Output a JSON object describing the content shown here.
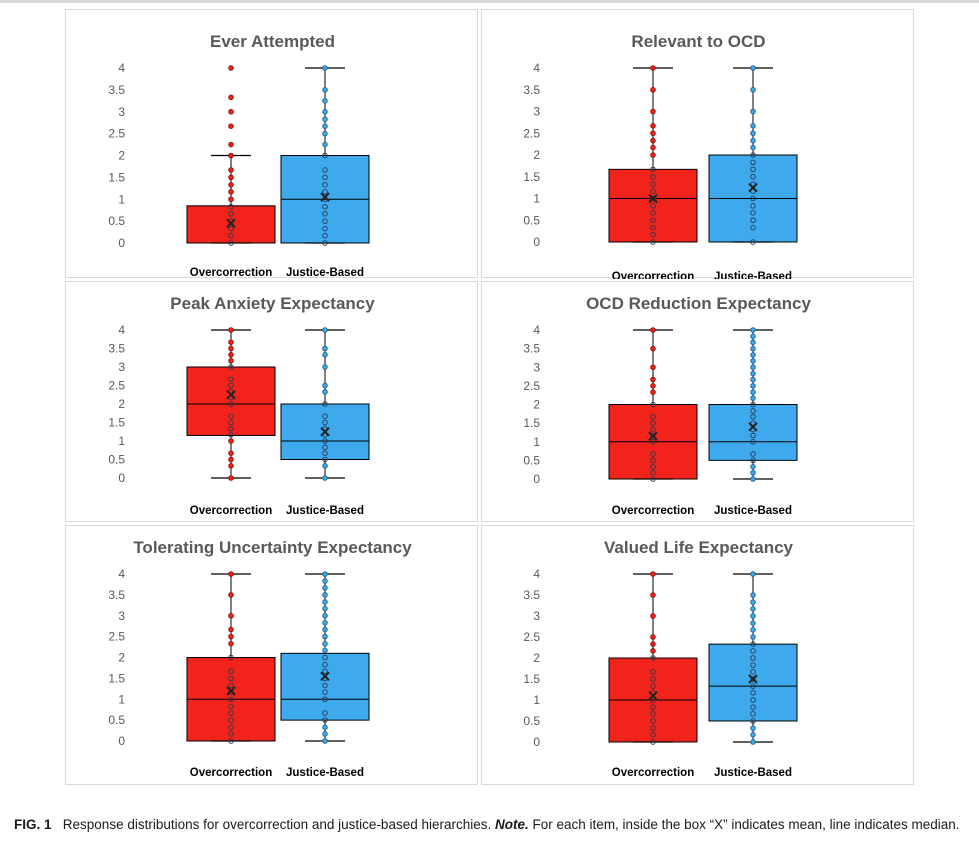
{
  "caption": {
    "label": "FIG. 1",
    "text": "Response distributions for overcorrection and justice-based hierarchies.",
    "note_label": "Note.",
    "note_text": "For each item, inside the box “X” indicates mean, line indicates median."
  },
  "colors": {
    "overcorrection": "#f2231a",
    "justice": "#3ea9ec",
    "axis_text": "#595959"
  },
  "chart_data": [
    {
      "type": "box",
      "title": "Ever Attempted",
      "ylim": [
        0,
        4
      ],
      "yticks": [
        "0",
        "0.5",
        "1",
        "1.5",
        "2",
        "2.5",
        "3",
        "3.5",
        "4"
      ],
      "categories": [
        "Overcorrection",
        "Justice-Based"
      ],
      "series": [
        {
          "name": "Overcorrection",
          "q1": 0,
          "median": 0,
          "q3": 0.85,
          "mean": 0.45,
          "whisker_low": 0,
          "whisker_high": 2,
          "points": [
            0,
            0.17,
            0.33,
            0.5,
            0.67,
            0.83,
            1,
            1.17,
            1.33,
            1.5,
            1.67,
            2,
            2.25,
            2.67,
            3,
            3.33,
            4
          ]
        },
        {
          "name": "Justice-Based",
          "q1": 0,
          "median": 1,
          "q3": 2,
          "mean": 1.05,
          "whisker_low": 0,
          "whisker_high": 4,
          "points": [
            0,
            0.17,
            0.33,
            0.5,
            0.67,
            0.83,
            1,
            1.17,
            1.33,
            1.5,
            1.67,
            2,
            2.25,
            2.5,
            2.67,
            2.83,
            3,
            3.25,
            3.5,
            4
          ]
        }
      ]
    },
    {
      "type": "box",
      "title": "Relevant to OCD",
      "ylim": [
        0,
        4
      ],
      "yticks": [
        "0",
        "0.5",
        "1",
        "1.5",
        "2",
        "2.5",
        "3",
        "3.5",
        "4"
      ],
      "categories": [
        "Overcorrection",
        "Justice-Based"
      ],
      "series": [
        {
          "name": "Overcorrection",
          "q1": 0,
          "median": 1,
          "q3": 1.67,
          "mean": 1.0,
          "whisker_low": 0,
          "whisker_high": 4,
          "points": [
            0,
            0.17,
            0.33,
            0.5,
            0.67,
            0.83,
            1,
            1.17,
            1.33,
            1.5,
            1.67,
            2,
            2.17,
            2.33,
            2.5,
            2.67,
            3,
            3.5,
            4
          ]
        },
        {
          "name": "Justice-Based",
          "q1": 0,
          "median": 1,
          "q3": 2,
          "mean": 1.25,
          "whisker_low": 0,
          "whisker_high": 4,
          "points": [
            0,
            0.33,
            0.5,
            0.67,
            0.83,
            1,
            1.17,
            1.33,
            1.5,
            1.67,
            1.83,
            2,
            2.17,
            2.33,
            2.5,
            2.67,
            3,
            3.5,
            4
          ]
        }
      ]
    },
    {
      "type": "box",
      "title": "Peak Anxiety Expectancy",
      "ylim": [
        0,
        4
      ],
      "yticks": [
        "0",
        "0.5",
        "1",
        "1.5",
        "2",
        "2.5",
        "3",
        "3.5",
        "4"
      ],
      "categories": [
        "Overcorrection",
        "Justice-Based"
      ],
      "series": [
        {
          "name": "Overcorrection",
          "q1": 1.15,
          "median": 2,
          "q3": 3,
          "mean": 2.25,
          "whisker_low": 0,
          "whisker_high": 4,
          "points": [
            0,
            0.33,
            0.5,
            0.67,
            1,
            1.17,
            1.33,
            1.5,
            1.67,
            2,
            2.17,
            2.33,
            2.5,
            2.67,
            3,
            3.17,
            3.33,
            3.5,
            3.67,
            4
          ]
        },
        {
          "name": "Justice-Based",
          "q1": 0.5,
          "median": 1,
          "q3": 2,
          "mean": 1.25,
          "whisker_low": 0,
          "whisker_high": 4,
          "points": [
            0,
            0.33,
            0.5,
            0.67,
            0.83,
            1,
            1.17,
            1.33,
            1.5,
            1.67,
            2,
            2.33,
            2.5,
            3,
            3.33,
            3.5,
            4
          ]
        }
      ]
    },
    {
      "type": "box",
      "title": "OCD Reduction Expectancy",
      "ylim": [
        0,
        4
      ],
      "yticks": [
        "0",
        "0.5",
        "1",
        "1.5",
        "2",
        "2.5",
        "3",
        "3.5",
        "4"
      ],
      "categories": [
        "Overcorrection",
        "Justice-Based"
      ],
      "series": [
        {
          "name": "Overcorrection",
          "q1": 0,
          "median": 1,
          "q3": 2,
          "mean": 1.15,
          "whisker_low": 0,
          "whisker_high": 4,
          "points": [
            0,
            0.17,
            0.33,
            0.5,
            0.67,
            1,
            1.17,
            1.33,
            1.5,
            1.67,
            2,
            2.33,
            2.5,
            2.67,
            3,
            3.5,
            4
          ]
        },
        {
          "name": "Justice-Based",
          "q1": 0.5,
          "median": 1,
          "q3": 2,
          "mean": 1.4,
          "whisker_low": 0,
          "whisker_high": 4,
          "points": [
            0,
            0.17,
            0.33,
            0.5,
            0.67,
            1,
            1.17,
            1.33,
            1.5,
            1.67,
            1.83,
            2,
            2.17,
            2.33,
            2.5,
            2.67,
            2.83,
            3,
            3.17,
            3.33,
            3.5,
            3.67,
            3.83,
            4
          ]
        }
      ]
    },
    {
      "type": "box",
      "title": "Tolerating Uncertainty Expectancy",
      "ylim": [
        0,
        4
      ],
      "yticks": [
        "0",
        "0.5",
        "1",
        "1.5",
        "2",
        "2.5",
        "3",
        "3.5",
        "4"
      ],
      "categories": [
        "Overcorrection",
        "Justice-Based"
      ],
      "series": [
        {
          "name": "Overcorrection",
          "q1": 0,
          "median": 1,
          "q3": 2,
          "mean": 1.2,
          "whisker_low": 0,
          "whisker_high": 4,
          "points": [
            0,
            0.17,
            0.33,
            0.5,
            0.67,
            0.83,
            1,
            1.17,
            1.33,
            1.5,
            1.67,
            2,
            2.33,
            2.5,
            2.67,
            3,
            3.5,
            4
          ]
        },
        {
          "name": "Justice-Based",
          "q1": 0.5,
          "median": 1,
          "q3": 2.1,
          "mean": 1.55,
          "whisker_low": 0,
          "whisker_high": 4,
          "points": [
            0,
            0.17,
            0.33,
            0.5,
            0.67,
            1,
            1.17,
            1.33,
            1.5,
            1.67,
            1.83,
            2,
            2.17,
            2.33,
            2.5,
            2.67,
            2.83,
            3,
            3.17,
            3.33,
            3.5,
            3.67,
            3.83,
            4
          ]
        }
      ]
    },
    {
      "type": "box",
      "title": "Valued Life Expectancy",
      "ylim": [
        0,
        4
      ],
      "yticks": [
        "0",
        "0.5",
        "1",
        "1.5",
        "2",
        "2.5",
        "3",
        "3.5",
        "4"
      ],
      "categories": [
        "Overcorrection",
        "Justice-Based"
      ],
      "series": [
        {
          "name": "Overcorrection",
          "q1": 0,
          "median": 1,
          "q3": 2,
          "mean": 1.1,
          "whisker_low": 0,
          "whisker_high": 4,
          "points": [
            0,
            0.17,
            0.33,
            0.5,
            0.67,
            0.83,
            1,
            1.17,
            1.33,
            1.5,
            1.67,
            2,
            2.17,
            2.33,
            2.5,
            3,
            3.5,
            4
          ]
        },
        {
          "name": "Justice-Based",
          "q1": 0.5,
          "median": 1.33,
          "q3": 2.33,
          "mean": 1.5,
          "whisker_low": 0,
          "whisker_high": 4,
          "points": [
            0,
            0.17,
            0.33,
            0.5,
            0.67,
            0.83,
            1,
            1.17,
            1.33,
            1.5,
            1.67,
            1.83,
            2,
            2.17,
            2.33,
            2.5,
            2.67,
            2.83,
            3,
            3.17,
            3.33,
            3.5,
            4
          ]
        }
      ]
    }
  ]
}
